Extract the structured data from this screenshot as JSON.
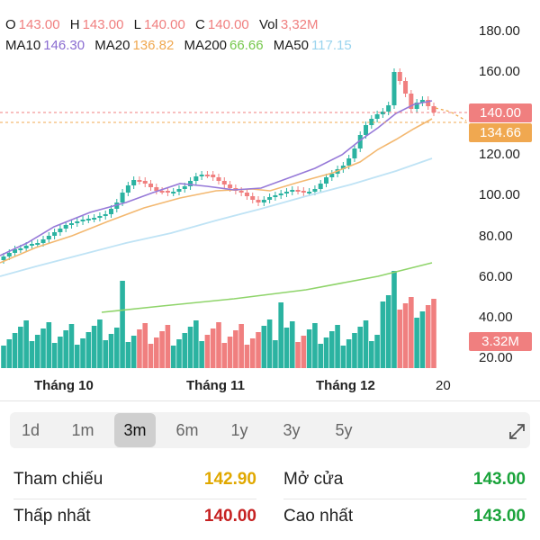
{
  "header": {
    "ohlc": [
      {
        "label": "O",
        "value": "143.00"
      },
      {
        "label": "H",
        "value": "143.00"
      },
      {
        "label": "L",
        "value": "140.00"
      },
      {
        "label": "C",
        "value": "140.00"
      },
      {
        "label": "Vol",
        "value": "3,32M"
      }
    ],
    "ma": [
      {
        "label": "MA10",
        "value": "146.30",
        "color": "#8a6cd1"
      },
      {
        "label": "MA20",
        "value": "136.82",
        "color": "#f0a850"
      },
      {
        "label": "MA200",
        "value": "66.66",
        "color": "#76c84c"
      },
      {
        "label": "MA50",
        "value": "117.15",
        "color": "#9ad4ee"
      }
    ],
    "ohlc_color": "#f07f7f"
  },
  "chart_data": {
    "type": "candlestick",
    "y_ticks": [
      "180.00",
      "160.00",
      "140.00",
      "120.00",
      "100.00",
      "80.00",
      "60.00",
      "40.00",
      "20.00"
    ],
    "ylim": [
      20,
      180
    ],
    "x_labels": [
      "Tháng 10",
      "Tháng 11",
      "Tháng 12",
      "20"
    ],
    "current_price_label": "140.00",
    "reference_price_label": "134.66",
    "volume_label": "3.32M",
    "up_color": "#2bb3a1",
    "down_color": "#f07f7f"
  },
  "ranges": {
    "items": [
      "1d",
      "1m",
      "3m",
      "6m",
      "1y",
      "3y",
      "5y"
    ],
    "active": "3m"
  },
  "stats": {
    "reference": {
      "label": "Tham chiếu",
      "value": "142.90",
      "color": "#e0a800"
    },
    "open": {
      "label": "Mở cửa",
      "value": "143.00",
      "color": "#1aa33b"
    },
    "low": {
      "label": "Thấp nhất",
      "value": "140.00",
      "color": "#c62121"
    },
    "high": {
      "label": "Cao nhất",
      "value": "143.00",
      "color": "#1aa33b"
    }
  }
}
